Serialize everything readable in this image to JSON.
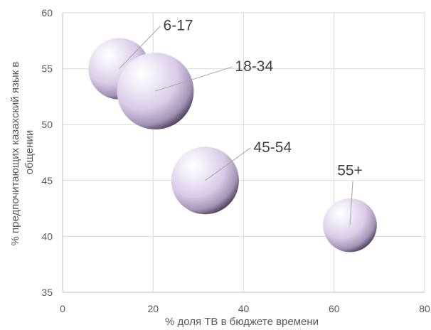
{
  "chart_data": {
    "type": "bubble",
    "title": "",
    "xlabel": "% доля ТВ в бюджете времени",
    "ylabel": "% предпочитающих казахский язык в общении",
    "ylabel_lines": [
      "% предпочитающих казахский язык в",
      "общении"
    ],
    "xlim": [
      0,
      80
    ],
    "ylim": [
      35,
      60
    ],
    "xticks": [
      0,
      20,
      40,
      60,
      80
    ],
    "yticks": [
      35,
      40,
      45,
      50,
      55,
      60
    ],
    "grid": true,
    "bubble_color": "#d9cde8",
    "points": [
      {
        "label": "6-17",
        "x": 12.5,
        "y": 55,
        "size": 0.8
      },
      {
        "label": "18-34",
        "x": 20.5,
        "y": 53,
        "size": 1.0
      },
      {
        "label": "45-54",
        "x": 31.5,
        "y": 45,
        "size": 0.88
      },
      {
        "label": "55+",
        "x": 63.5,
        "y": 41,
        "size": 0.7
      }
    ]
  }
}
